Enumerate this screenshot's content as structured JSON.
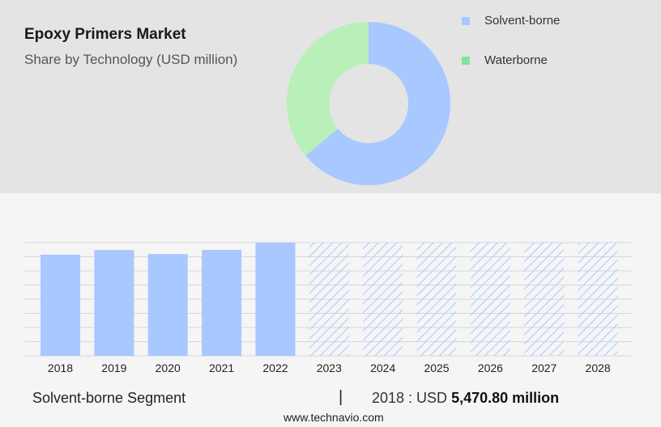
{
  "header": {
    "title": "Epoxy Primers Market",
    "subtitle": "Share by Technology (USD million)"
  },
  "colors": {
    "solvent": "#a8c8ff",
    "waterborne": "#b9efb9",
    "waterborne_legend": "#7fe49b",
    "hatch": "#a8c8ff",
    "grid": "#d6d6d6"
  },
  "chart_data": [
    {
      "type": "pie",
      "subtype": "donut",
      "categories": [
        "Solvent-borne",
        "Waterborne"
      ],
      "values": [
        64,
        36
      ],
      "legend": "top-right"
    },
    {
      "type": "bar",
      "categories": [
        "2018",
        "2019",
        "2020",
        "2021",
        "2022",
        "2023",
        "2024",
        "2025",
        "2026",
        "2027",
        "2028"
      ],
      "series": [
        {
          "values": [
            5470.8,
            5720,
            5500,
            5730,
            6120,
            null,
            null,
            null,
            null,
            null,
            null
          ]
        }
      ],
      "forecast_categories": [
        "2023",
        "2024",
        "2025",
        "2026",
        "2027",
        "2028"
      ],
      "ylim": [
        0,
        6120
      ],
      "grid": true
    }
  ],
  "footer": {
    "segment": "Solvent-borne Segment",
    "divider": "|",
    "value_prefix": "2018 : USD",
    "value_strong": "5,470.80 million",
    "website": "www.technavio.com"
  }
}
